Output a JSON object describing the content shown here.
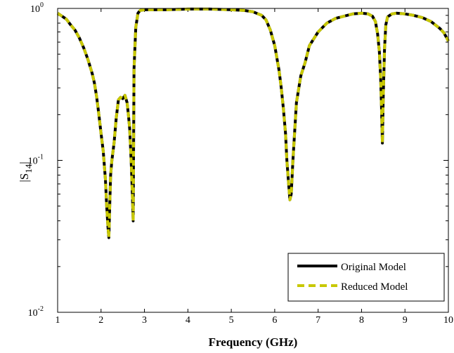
{
  "chart_data": {
    "type": "line",
    "title": "",
    "xlabel": "Frequency (GHz)",
    "ylabel": "|S14|",
    "ylabel_main": "|S",
    "ylabel_sub": "14",
    "ylabel_end": "|",
    "xlim": [
      1,
      10
    ],
    "ylim": [
      0.01,
      1
    ],
    "yscale": "log",
    "grid": false,
    "legend_position": "bottom-right",
    "x_ticks": [
      1,
      2,
      3,
      4,
      5,
      6,
      7,
      8,
      9,
      10
    ],
    "x_tick_labels": [
      "1",
      "2",
      "3",
      "4",
      "5",
      "6",
      "7",
      "8",
      "9",
      "10"
    ],
    "y_ticks": [
      {
        "value": 0.01,
        "base": "10",
        "exp": "-2"
      },
      {
        "value": 0.1,
        "base": "10",
        "exp": "-1"
      },
      {
        "value": 1,
        "base": "10",
        "exp": "0"
      }
    ],
    "x": [
      1.0,
      1.1,
      1.2,
      1.3,
      1.4,
      1.5,
      1.6,
      1.7,
      1.8,
      1.85,
      1.9,
      1.95,
      2.0,
      2.05,
      2.1,
      2.13,
      2.16,
      2.18,
      2.2,
      2.22,
      2.25,
      2.3,
      2.35,
      2.4,
      2.45,
      2.5,
      2.55,
      2.6,
      2.63,
      2.66,
      2.68,
      2.7,
      2.72,
      2.74,
      2.76,
      2.8,
      2.85,
      2.9,
      3.0,
      3.5,
      4.0,
      4.5,
      5.0,
      5.3,
      5.5,
      5.7,
      5.8,
      5.9,
      6.0,
      6.1,
      6.15,
      6.2,
      6.25,
      6.28,
      6.32,
      6.35,
      6.38,
      6.42,
      6.5,
      6.6,
      6.7,
      6.8,
      7.0,
      7.2,
      7.4,
      7.6,
      7.8,
      8.0,
      8.15,
      8.25,
      8.32,
      8.37,
      8.41,
      8.44,
      8.46,
      8.48,
      8.5,
      8.53,
      8.56,
      8.6,
      8.7,
      8.8,
      9.0,
      9.2,
      9.4,
      9.6,
      9.8,
      9.9,
      10.0
    ],
    "series": [
      {
        "name": "Original Model",
        "color": "#000000",
        "style": "solid",
        "values": [
          0.93,
          0.89,
          0.85,
          0.78,
          0.72,
          0.64,
          0.55,
          0.46,
          0.37,
          0.32,
          0.26,
          0.2,
          0.15,
          0.115,
          0.075,
          0.05,
          0.036,
          0.031,
          0.05,
          0.08,
          0.1,
          0.13,
          0.19,
          0.25,
          0.26,
          0.255,
          0.268,
          0.24,
          0.2,
          0.16,
          0.12,
          0.09,
          0.06,
          0.04,
          0.4,
          0.75,
          0.93,
          0.97,
          0.98,
          0.98,
          0.99,
          0.99,
          0.98,
          0.97,
          0.95,
          0.9,
          0.84,
          0.72,
          0.57,
          0.39,
          0.3,
          0.22,
          0.15,
          0.1,
          0.07,
          0.055,
          0.06,
          0.1,
          0.24,
          0.36,
          0.44,
          0.57,
          0.7,
          0.8,
          0.86,
          0.89,
          0.92,
          0.93,
          0.92,
          0.89,
          0.82,
          0.68,
          0.52,
          0.35,
          0.22,
          0.13,
          0.26,
          0.55,
          0.78,
          0.88,
          0.92,
          0.93,
          0.92,
          0.9,
          0.87,
          0.82,
          0.74,
          0.69,
          0.61
        ]
      },
      {
        "name": "Reduced Model",
        "color": "#c8c800",
        "style": "dashed",
        "values": [
          0.93,
          0.89,
          0.85,
          0.78,
          0.72,
          0.64,
          0.55,
          0.46,
          0.37,
          0.32,
          0.26,
          0.2,
          0.15,
          0.115,
          0.075,
          0.05,
          0.036,
          0.031,
          0.05,
          0.08,
          0.1,
          0.13,
          0.19,
          0.25,
          0.26,
          0.255,
          0.268,
          0.24,
          0.2,
          0.16,
          0.12,
          0.09,
          0.06,
          0.04,
          0.4,
          0.75,
          0.93,
          0.97,
          0.98,
          0.98,
          0.99,
          0.99,
          0.98,
          0.97,
          0.95,
          0.9,
          0.84,
          0.72,
          0.57,
          0.39,
          0.3,
          0.22,
          0.15,
          0.1,
          0.07,
          0.055,
          0.06,
          0.1,
          0.24,
          0.36,
          0.44,
          0.57,
          0.7,
          0.8,
          0.86,
          0.89,
          0.92,
          0.93,
          0.92,
          0.89,
          0.82,
          0.68,
          0.52,
          0.35,
          0.22,
          0.13,
          0.26,
          0.55,
          0.78,
          0.88,
          0.92,
          0.93,
          0.92,
          0.9,
          0.87,
          0.82,
          0.74,
          0.69,
          0.61
        ]
      }
    ]
  }
}
